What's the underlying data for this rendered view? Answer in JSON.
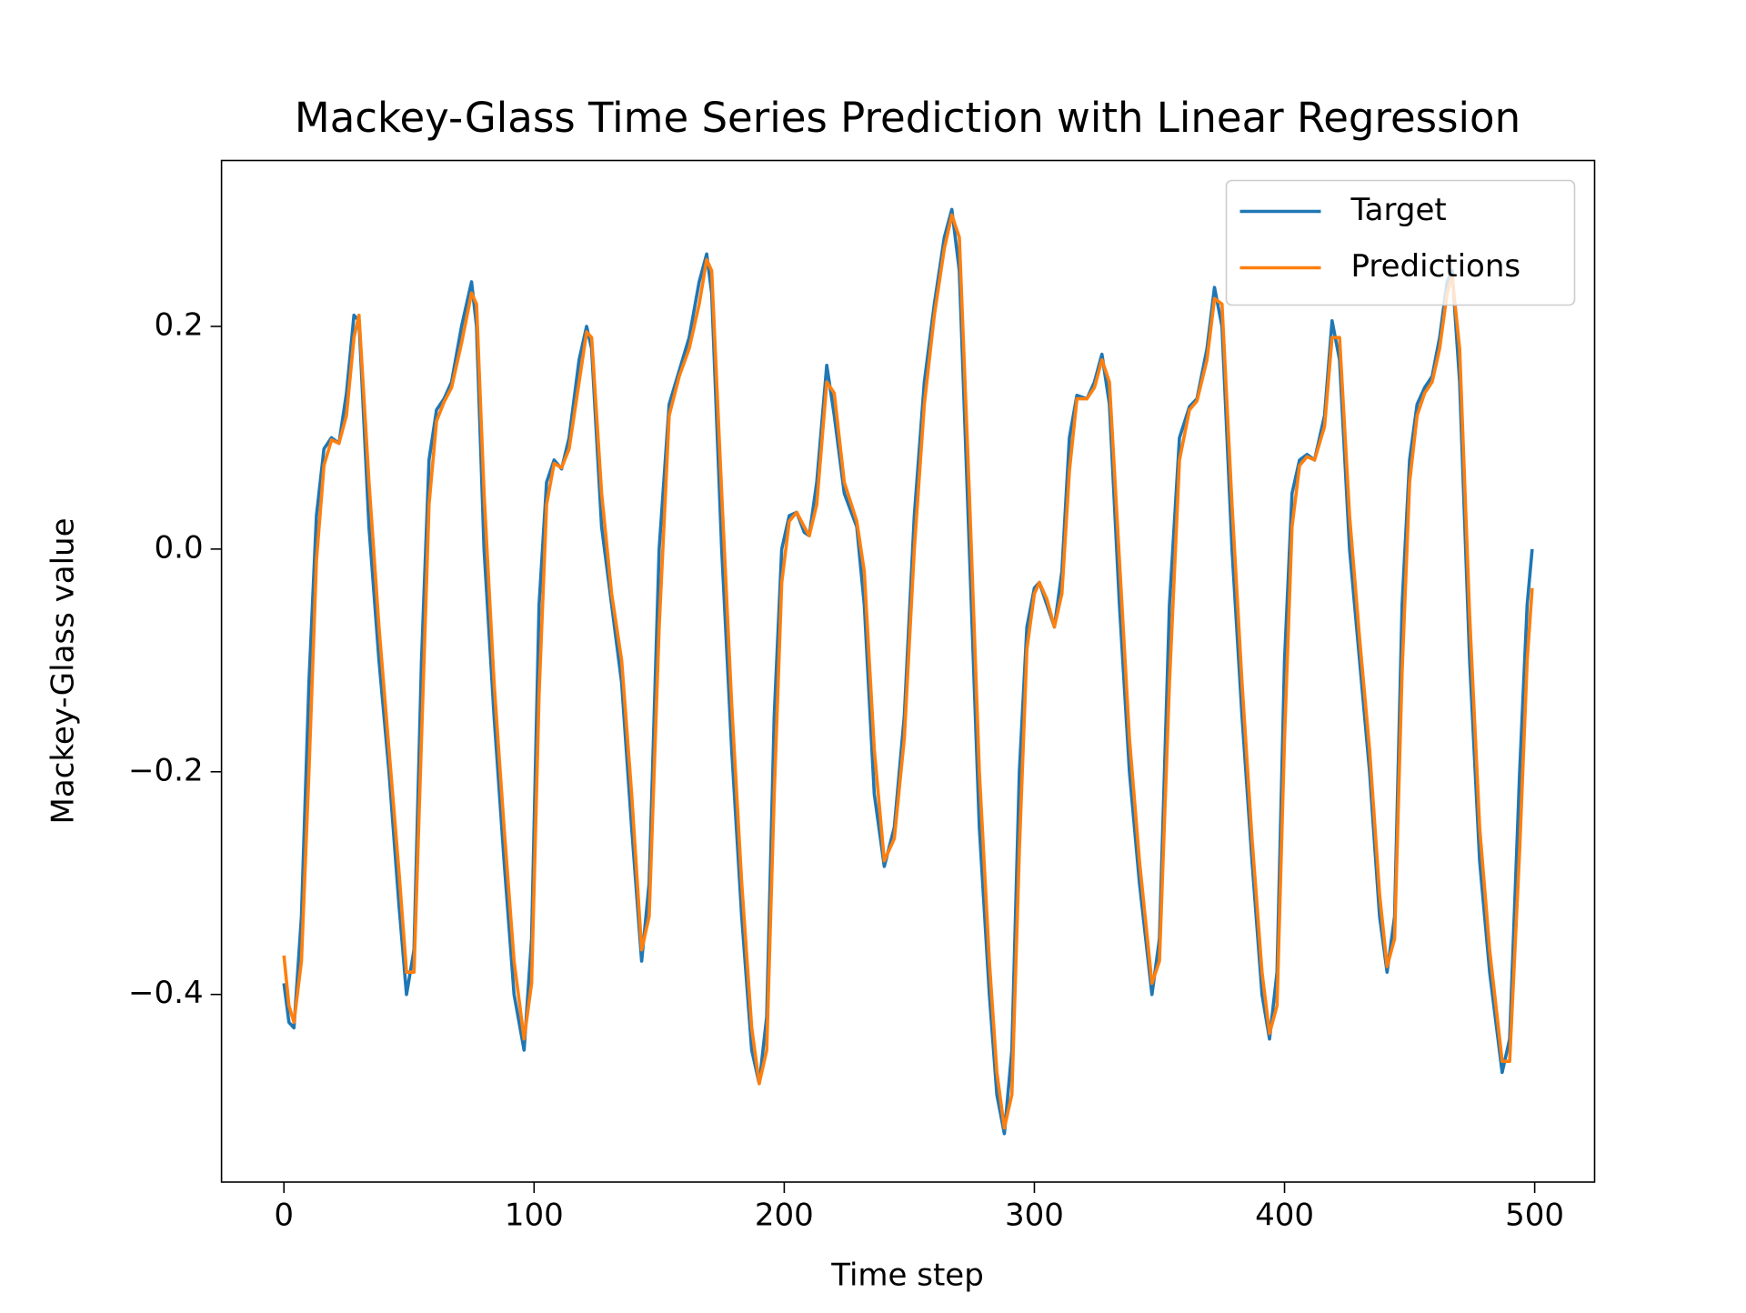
{
  "chart_data": {
    "type": "line",
    "title": "Mackey-Glass Time Series Prediction with Linear Regression",
    "xlabel": "Time step",
    "ylabel": "Mackey-Glass value",
    "x": [
      0,
      2,
      4,
      7,
      10,
      13,
      16,
      19,
      22,
      25,
      28,
      30,
      34,
      38,
      42,
      46,
      49,
      52,
      55,
      58,
      61,
      64,
      67,
      71,
      75,
      77,
      80,
      84,
      88,
      92,
      96,
      99,
      102,
      105,
      108,
      111,
      114,
      118,
      121,
      123,
      127,
      131,
      135,
      139,
      143,
      146,
      150,
      154,
      158,
      162,
      166,
      169,
      171,
      175,
      179,
      183,
      187,
      190,
      193,
      196,
      199,
      202,
      205,
      208,
      210,
      213,
      217,
      220,
      224,
      229,
      232,
      236,
      240,
      244,
      248,
      252,
      256,
      260,
      264,
      267,
      270,
      274,
      278,
      282,
      285,
      288,
      291,
      294,
      297,
      300,
      302,
      305,
      308,
      311,
      314,
      317,
      321,
      324,
      327,
      330,
      334,
      338,
      342,
      347,
      350,
      354,
      358,
      362,
      365,
      369,
      372,
      375,
      379,
      383,
      387,
      391,
      394,
      397,
      400,
      403,
      406,
      409,
      412,
      416,
      419,
      422,
      426,
      430,
      434,
      438,
      441,
      444,
      447,
      450,
      453,
      456,
      459,
      462,
      465,
      467,
      470,
      474,
      478,
      482,
      487,
      490,
      494,
      497,
      499
    ],
    "series": [
      {
        "name": "Target",
        "color": "#1f77b4",
        "values": [
          -0.39,
          -0.425,
          -0.43,
          -0.33,
          -0.12,
          0.03,
          0.09,
          0.1,
          0.095,
          0.14,
          0.21,
          0.205,
          0.02,
          -0.1,
          -0.2,
          -0.32,
          -0.4,
          -0.36,
          -0.1,
          0.08,
          0.125,
          0.135,
          0.15,
          0.2,
          0.24,
          0.2,
          0.0,
          -0.15,
          -0.28,
          -0.4,
          -0.45,
          -0.35,
          -0.05,
          0.06,
          0.08,
          0.072,
          0.1,
          0.17,
          0.2,
          0.18,
          0.02,
          -0.05,
          -0.12,
          -0.25,
          -0.37,
          -0.3,
          0.0,
          0.13,
          0.16,
          0.19,
          0.24,
          0.265,
          0.23,
          0.0,
          -0.18,
          -0.33,
          -0.45,
          -0.48,
          -0.42,
          -0.15,
          0.0,
          0.03,
          0.033,
          0.015,
          0.012,
          0.06,
          0.165,
          0.12,
          0.05,
          0.02,
          -0.05,
          -0.22,
          -0.285,
          -0.25,
          -0.15,
          0.03,
          0.15,
          0.22,
          0.28,
          0.305,
          0.25,
          0.0,
          -0.25,
          -0.4,
          -0.49,
          -0.525,
          -0.45,
          -0.2,
          -0.07,
          -0.035,
          -0.03,
          -0.05,
          -0.07,
          -0.02,
          0.1,
          0.138,
          0.135,
          0.15,
          0.175,
          0.13,
          -0.05,
          -0.2,
          -0.3,
          -0.4,
          -0.35,
          -0.05,
          0.1,
          0.128,
          0.135,
          0.18,
          0.235,
          0.2,
          0.0,
          -0.15,
          -0.28,
          -0.4,
          -0.44,
          -0.38,
          -0.1,
          0.05,
          0.08,
          0.085,
          0.08,
          0.12,
          0.205,
          0.17,
          0.0,
          -0.1,
          -0.2,
          -0.33,
          -0.38,
          -0.33,
          -0.05,
          0.08,
          0.13,
          0.145,
          0.155,
          0.19,
          0.24,
          0.25,
          0.15,
          -0.1,
          -0.28,
          -0.38,
          -0.47,
          -0.44,
          -0.2,
          -0.05,
          0.0
        ]
      },
      {
        "name": "Predictions",
        "color": "#ff7f0e",
        "values": [
          -0.365,
          -0.41,
          -0.425,
          -0.37,
          -0.2,
          -0.01,
          0.075,
          0.098,
          0.095,
          0.12,
          0.19,
          0.21,
          0.06,
          -0.07,
          -0.18,
          -0.29,
          -0.38,
          -0.38,
          -0.17,
          0.04,
          0.115,
          0.132,
          0.145,
          0.185,
          0.23,
          0.22,
          0.05,
          -0.12,
          -0.25,
          -0.37,
          -0.44,
          -0.39,
          -0.13,
          0.04,
          0.077,
          0.073,
          0.09,
          0.15,
          0.195,
          0.19,
          0.05,
          -0.04,
          -0.1,
          -0.22,
          -0.36,
          -0.33,
          -0.07,
          0.12,
          0.155,
          0.18,
          0.22,
          0.26,
          0.25,
          0.05,
          -0.14,
          -0.3,
          -0.43,
          -0.48,
          -0.45,
          -0.22,
          -0.03,
          0.025,
          0.033,
          0.02,
          0.012,
          0.04,
          0.15,
          0.14,
          0.06,
          0.025,
          -0.02,
          -0.18,
          -0.28,
          -0.26,
          -0.17,
          0.0,
          0.13,
          0.21,
          0.27,
          0.3,
          0.28,
          0.05,
          -0.2,
          -0.37,
          -0.47,
          -0.52,
          -0.49,
          -0.27,
          -0.09,
          -0.04,
          -0.03,
          -0.045,
          -0.07,
          -0.04,
          0.07,
          0.135,
          0.135,
          0.145,
          0.17,
          0.15,
          -0.01,
          -0.17,
          -0.28,
          -0.39,
          -0.37,
          -0.12,
          0.08,
          0.125,
          0.133,
          0.17,
          0.225,
          0.22,
          0.04,
          -0.12,
          -0.26,
          -0.38,
          -0.435,
          -0.41,
          -0.17,
          0.02,
          0.075,
          0.083,
          0.08,
          0.11,
          0.19,
          0.19,
          0.03,
          -0.08,
          -0.18,
          -0.31,
          -0.375,
          -0.35,
          -0.11,
          0.06,
          0.12,
          0.14,
          0.15,
          0.18,
          0.23,
          0.245,
          0.18,
          -0.06,
          -0.25,
          -0.36,
          -0.46,
          -0.46,
          -0.27,
          -0.1,
          -0.035
        ]
      }
    ],
    "xlim": [
      -24.95,
      523.95
    ],
    "ylim": [
      -0.5685,
      0.349
    ],
    "xticks": [
      0,
      100,
      200,
      300,
      400,
      500
    ],
    "yticks": [
      {
        "value": -0.4,
        "label": "−0.4"
      },
      {
        "value": -0.2,
        "label": "−0.2"
      },
      {
        "value": 0.0,
        "label": "0.0"
      },
      0.2
    ],
    "legend": "upper right"
  }
}
